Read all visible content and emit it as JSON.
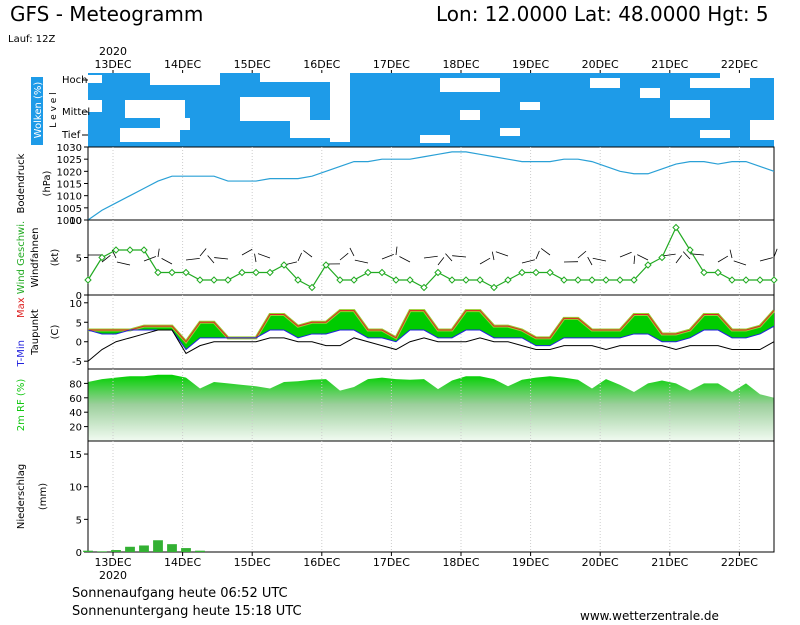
{
  "header": {
    "title": "GFS - Meteogramm",
    "location": "Lon: 12.0000  Lat: 48.0000  Hgt: 5",
    "run": "Lauf: 12Z"
  },
  "days": [
    "13DEC",
    "14DEC",
    "15DEC",
    "16DEC",
    "17DEC",
    "18DEC",
    "19DEC",
    "20DEC",
    "21DEC",
    "22DEC"
  ],
  "year": "2020",
  "colors": {
    "cloud_bg": "#1e9be8",
    "pressure": "#2aa0d6",
    "wind": "#22aa22",
    "windbarb": "#000000",
    "tmax": "#dd2222",
    "tmin": "#2222dd",
    "dew": "#000000",
    "fill_green": "#00cc00",
    "fill_lime": "#9acd32",
    "rh_fill": "#11c711",
    "precip": "#33b033"
  },
  "chart_data": [
    {
      "type": "area",
      "id": "clouds",
      "ylabel": "Wolken (%)",
      "level_axis": "L e v e l",
      "levels": [
        "Hoch",
        "Mittel",
        "Tief"
      ],
      "description": "cloud cover by level; mostly overcast with breaks"
    },
    {
      "type": "line",
      "id": "pressure",
      "ylabel": "Bodendruck",
      "unit": "(hPa)",
      "ylim": [
        1000,
        1030
      ],
      "yticks": [
        1000,
        1005,
        1010,
        1015,
        1020,
        1025,
        1030
      ],
      "series": [
        {
          "values": [
            1000,
            1004,
            1007,
            1010,
            1013,
            1016,
            1018,
            1018,
            1018,
            1018,
            1016,
            1016,
            1016,
            1017,
            1017,
            1017,
            1018,
            1020,
            1022,
            1024,
            1024,
            1025,
            1025,
            1025,
            1026,
            1027,
            1028,
            1028,
            1027,
            1026,
            1025,
            1024,
            1024,
            1024,
            1025,
            1025,
            1024,
            1022,
            1020,
            1019,
            1019,
            1021,
            1023,
            1024,
            1024,
            1023,
            1024,
            1024,
            1022,
            1020
          ]
        }
      ]
    },
    {
      "type": "line",
      "id": "wind",
      "ylabel": "Wind Geschwi.",
      "ylabel2": "Windfahnen",
      "unit": "(kt)",
      "ylim": [
        0,
        10
      ],
      "yticks": [
        0,
        5,
        10
      ],
      "series": [
        {
          "name": "Wind Geschwi.",
          "values": [
            2,
            5,
            6,
            6,
            6,
            3,
            3,
            3,
            2,
            2,
            2,
            3,
            3,
            3,
            4,
            2,
            1,
            4,
            2,
            2,
            3,
            3,
            2,
            2,
            1,
            3,
            2,
            2,
            2,
            1,
            2,
            3,
            3,
            3,
            2,
            2,
            2,
            2,
            2,
            2,
            4,
            5,
            9,
            6,
            3,
            3,
            2,
            2,
            2,
            2
          ]
        }
      ]
    },
    {
      "type": "area",
      "id": "temperature",
      "ylabel_parts": [
        "T-Min,",
        "Max"
      ],
      "ylabel2": "Taupunkt",
      "unit": "(C)",
      "ylim": [
        -7,
        12
      ],
      "yticks": [
        -5,
        0,
        5,
        10
      ],
      "series": [
        {
          "name": "Max",
          "values": [
            3,
            3,
            3,
            3,
            4,
            4,
            4,
            0,
            5,
            5,
            1,
            1,
            1,
            7,
            7,
            4,
            5,
            5,
            8,
            8,
            3,
            3,
            1,
            8,
            8,
            3,
            3,
            8,
            8,
            4,
            4,
            3,
            1,
            1,
            6,
            6,
            3,
            3,
            3,
            7,
            7,
            2,
            2,
            3,
            7,
            7,
            3,
            3,
            4,
            8
          ]
        },
        {
          "name": "T-Min",
          "values": [
            3,
            2,
            2,
            3,
            3,
            3,
            3,
            -2,
            1,
            1,
            1,
            1,
            1,
            3,
            3,
            1,
            2,
            2,
            3,
            3,
            1,
            1,
            0,
            3,
            3,
            1,
            1,
            3,
            3,
            1,
            1,
            1,
            -1,
            -1,
            1,
            1,
            1,
            1,
            1,
            2,
            2,
            0,
            0,
            1,
            3,
            3,
            1,
            1,
            2,
            4
          ]
        },
        {
          "name": "Taupunkt",
          "values": [
            -5,
            -2,
            0,
            1,
            2,
            3,
            3,
            -3,
            -1,
            0,
            0,
            0,
            0,
            1,
            1,
            0,
            0,
            -1,
            -1,
            1,
            0,
            -1,
            -2,
            0,
            1,
            0,
            0,
            0,
            1,
            0,
            0,
            -1,
            -2,
            -2,
            -1,
            -1,
            -1,
            -2,
            -1,
            -1,
            -1,
            -1,
            -2,
            -1,
            -1,
            -1,
            -2,
            -2,
            -2,
            0
          ]
        }
      ]
    },
    {
      "type": "area",
      "id": "humidity",
      "ylabel": "2m RF (%)",
      "ylim": [
        0,
        100
      ],
      "yticks": [
        20,
        40,
        60,
        80
      ],
      "series": [
        {
          "values": [
            82,
            86,
            88,
            90,
            90,
            92,
            92,
            88,
            73,
            82,
            80,
            78,
            76,
            73,
            82,
            83,
            85,
            86,
            70,
            75,
            86,
            88,
            86,
            85,
            86,
            72,
            84,
            90,
            90,
            86,
            76,
            85,
            88,
            90,
            88,
            85,
            73,
            86,
            78,
            68,
            80,
            84,
            80,
            70,
            80,
            80,
            68,
            80,
            65,
            60
          ]
        }
      ]
    },
    {
      "type": "bar",
      "id": "precip",
      "ylabel": "Niederschlag",
      "unit": "(mm)",
      "ylim": [
        0,
        17
      ],
      "yticks": [
        0,
        5,
        10,
        15
      ],
      "series": [
        {
          "values": [
            0.2,
            0.1,
            0.3,
            0.8,
            1.0,
            1.8,
            1.2,
            0.6,
            0.2,
            0,
            0,
            0,
            0,
            0,
            0,
            0,
            0,
            0,
            0,
            0,
            0,
            0,
            0,
            0,
            0,
            0,
            0,
            0,
            0,
            0,
            0,
            0,
            0,
            0,
            0,
            0,
            0,
            0,
            0,
            0,
            0,
            0,
            0,
            0,
            0,
            0,
            0,
            0,
            0,
            0
          ]
        }
      ]
    }
  ],
  "footer": {
    "sunrise": "Sonnenaufgang heute 06:52 UTC",
    "sunset": "Sonnenuntergang heute 15:18 UTC",
    "site": "www.wetterzentrale.de"
  }
}
